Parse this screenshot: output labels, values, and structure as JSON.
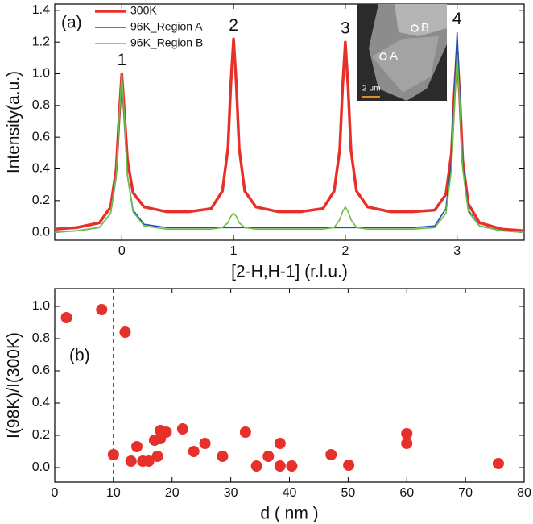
{
  "chart_data": [
    {
      "type": "line",
      "panel_label": "(a)",
      "xlabel": "[2-H,H-1] (r.l.u.)",
      "ylabel": "Intensity(a.u.)",
      "xlim": [
        -0.6,
        3.6
      ],
      "ylim": [
        -0.05,
        1.44
      ],
      "xticks": [
        0,
        1,
        2,
        3
      ],
      "yticks": [
        {
          "value": 0,
          "label": "0.0"
        },
        0.2,
        0.4,
        0.6,
        0.8,
        {
          "value": 1,
          "label": "1.0"
        },
        1.2,
        1.4
      ],
      "legend": "upper left",
      "peak_labels": [
        "1",
        "2",
        "3",
        "4"
      ],
      "inset_labels": [
        "A",
        "B",
        "2 μm"
      ],
      "x": [
        -0.6,
        -0.4,
        -0.2,
        -0.1,
        -0.05,
        -0.025,
        0,
        0.025,
        0.05,
        0.1,
        0.2,
        0.4,
        0.6,
        0.8,
        0.9,
        0.95,
        0.975,
        1,
        1.025,
        1.05,
        1.1,
        1.2,
        1.4,
        1.6,
        1.8,
        1.9,
        1.95,
        1.975,
        2,
        2.025,
        2.05,
        2.1,
        2.2,
        2.4,
        2.6,
        2.8,
        2.9,
        2.95,
        2.975,
        3,
        3.025,
        3.05,
        3.1,
        3.2,
        3.4,
        3.6
      ],
      "series": [
        {
          "name": "300K",
          "color": "#e8302a",
          "values": [
            0.02,
            0.03,
            0.06,
            0.16,
            0.4,
            0.72,
            1.0,
            0.74,
            0.46,
            0.25,
            0.16,
            0.13,
            0.13,
            0.15,
            0.26,
            0.53,
            0.93,
            1.22,
            0.93,
            0.53,
            0.26,
            0.16,
            0.13,
            0.13,
            0.15,
            0.26,
            0.52,
            0.91,
            1.2,
            0.91,
            0.52,
            0.26,
            0.16,
            0.13,
            0.13,
            0.14,
            0.24,
            0.5,
            0.87,
            1.15,
            0.84,
            0.45,
            0.18,
            0.06,
            0.02,
            0.01
          ]
        },
        {
          "name": "96K_Region A",
          "color": "#1f4fa8",
          "values": [
            0.0,
            0.01,
            0.03,
            0.12,
            0.35,
            0.68,
            0.99,
            0.68,
            0.36,
            0.14,
            0.05,
            0.03,
            0.03,
            0.03,
            0.03,
            0.03,
            0.03,
            0.03,
            0.03,
            0.03,
            0.03,
            0.03,
            0.03,
            0.03,
            0.03,
            0.03,
            0.03,
            0.03,
            0.03,
            0.03,
            0.03,
            0.03,
            0.03,
            0.03,
            0.03,
            0.04,
            0.15,
            0.45,
            0.88,
            1.26,
            0.86,
            0.43,
            0.14,
            0.04,
            0.01,
            0.0
          ]
        },
        {
          "name": "96K_Region B",
          "color": "#6cbf45",
          "values": [
            0.0,
            0.01,
            0.03,
            0.12,
            0.36,
            0.7,
            1.0,
            0.7,
            0.36,
            0.13,
            0.04,
            0.02,
            0.02,
            0.02,
            0.03,
            0.06,
            0.1,
            0.12,
            0.1,
            0.06,
            0.03,
            0.02,
            0.02,
            0.02,
            0.02,
            0.03,
            0.08,
            0.13,
            0.16,
            0.13,
            0.08,
            0.03,
            0.02,
            0.02,
            0.02,
            0.03,
            0.12,
            0.4,
            0.8,
            1.12,
            0.8,
            0.4,
            0.13,
            0.04,
            0.01,
            0.0
          ]
        }
      ]
    },
    {
      "type": "scatter",
      "panel_label": "(b)",
      "xlabel": "d ( nm )",
      "ylabel": "I(98K)/I(300K)",
      "xlim": [
        0,
        80
      ],
      "ylim": [
        -0.09,
        1.11
      ],
      "xticks": [
        0,
        10,
        20,
        30,
        40,
        50,
        60,
        70,
        80
      ],
      "yticks": [
        {
          "value": 0,
          "label": "0.0"
        },
        0.2,
        0.4,
        0.6,
        0.8,
        {
          "value": 1,
          "label": "1.0"
        }
      ],
      "vline": 10,
      "color": "#e8302a",
      "x": [
        2,
        8,
        12,
        10,
        13,
        14,
        15,
        16,
        17,
        17.5,
        18,
        18,
        19,
        21.8,
        23.7,
        25.6,
        28.6,
        32.5,
        34.4,
        36.4,
        38.4,
        38.4,
        40.4,
        47.1,
        50.1,
        60,
        60,
        75.6
      ],
      "values": [
        0.93,
        0.98,
        0.84,
        0.08,
        0.04,
        0.13,
        0.04,
        0.04,
        0.17,
        0.07,
        0.23,
        0.18,
        0.22,
        0.24,
        0.1,
        0.15,
        0.07,
        0.22,
        0.01,
        0.07,
        0.15,
        0.01,
        0.01,
        0.08,
        0.015,
        0.21,
        0.15,
        0.025
      ]
    }
  ]
}
